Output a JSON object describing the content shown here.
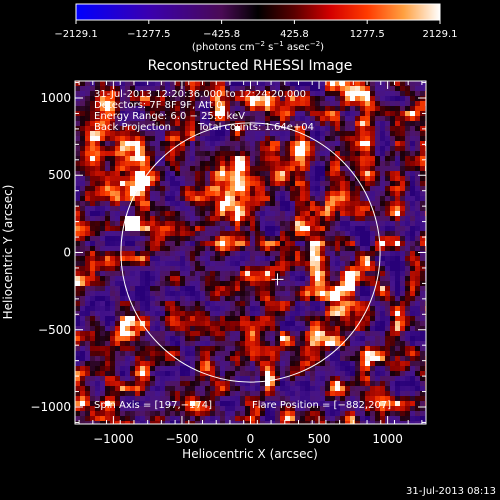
{
  "colorbar": {
    "ticks": [
      "−2129.1",
      "−1277.5",
      "−425.8",
      "425.8",
      "1277.5",
      "2129.1"
    ],
    "unit_main": "(photons cm",
    "unit_exp1": "−2",
    "unit_mid": " s",
    "unit_exp2": "−1",
    "unit_mid2": " asec",
    "unit_exp3": "−2",
    "unit_end": ")"
  },
  "chart_data": {
    "type": "heatmap",
    "title": "Reconstructed RHESSI Image",
    "xlabel": "Heliocentric X (arcsec)",
    "ylabel": "Heliocentric Y (arcsec)",
    "xlim": [
      -1280,
      1280
    ],
    "ylim": [
      -1110,
      1110
    ],
    "x_ticks": [
      -1000,
      -500,
      0,
      500,
      1000
    ],
    "y_ticks": [
      -1000,
      -500,
      0,
      500,
      1000
    ],
    "x_tick_labels": [
      "−1000",
      "−500",
      "0",
      "500",
      "1000"
    ],
    "y_tick_labels": [
      "−1000",
      "−500",
      "0",
      "500",
      "1000"
    ],
    "color_range": [
      -2129.1,
      2129.1
    ],
    "solar_limb_radius_arcsec": 945,
    "flare_position": [
      -882,
      207
    ],
    "map_center_marker": [
      197,
      -174
    ],
    "annotations": {
      "time": "31-Jul-2013 12:20:36.000 to 12:24:20.000",
      "detectors": "Detectors: 7F 8F 9F, Att 0",
      "energy": "Energy Range: 6.0 − 25.0 keV",
      "method": "Back Projection",
      "counts": "Total counts: 1.64e+04",
      "spin_axis": "Spin Axis = [197,−174]",
      "flare_pos": "Flare Position = [−882,207]"
    },
    "footer_timestamp": "31-Jul-2013 08:13"
  },
  "colors": {
    "background": "#000000",
    "axes": "#ffffff",
    "limb": "#ffffff"
  }
}
